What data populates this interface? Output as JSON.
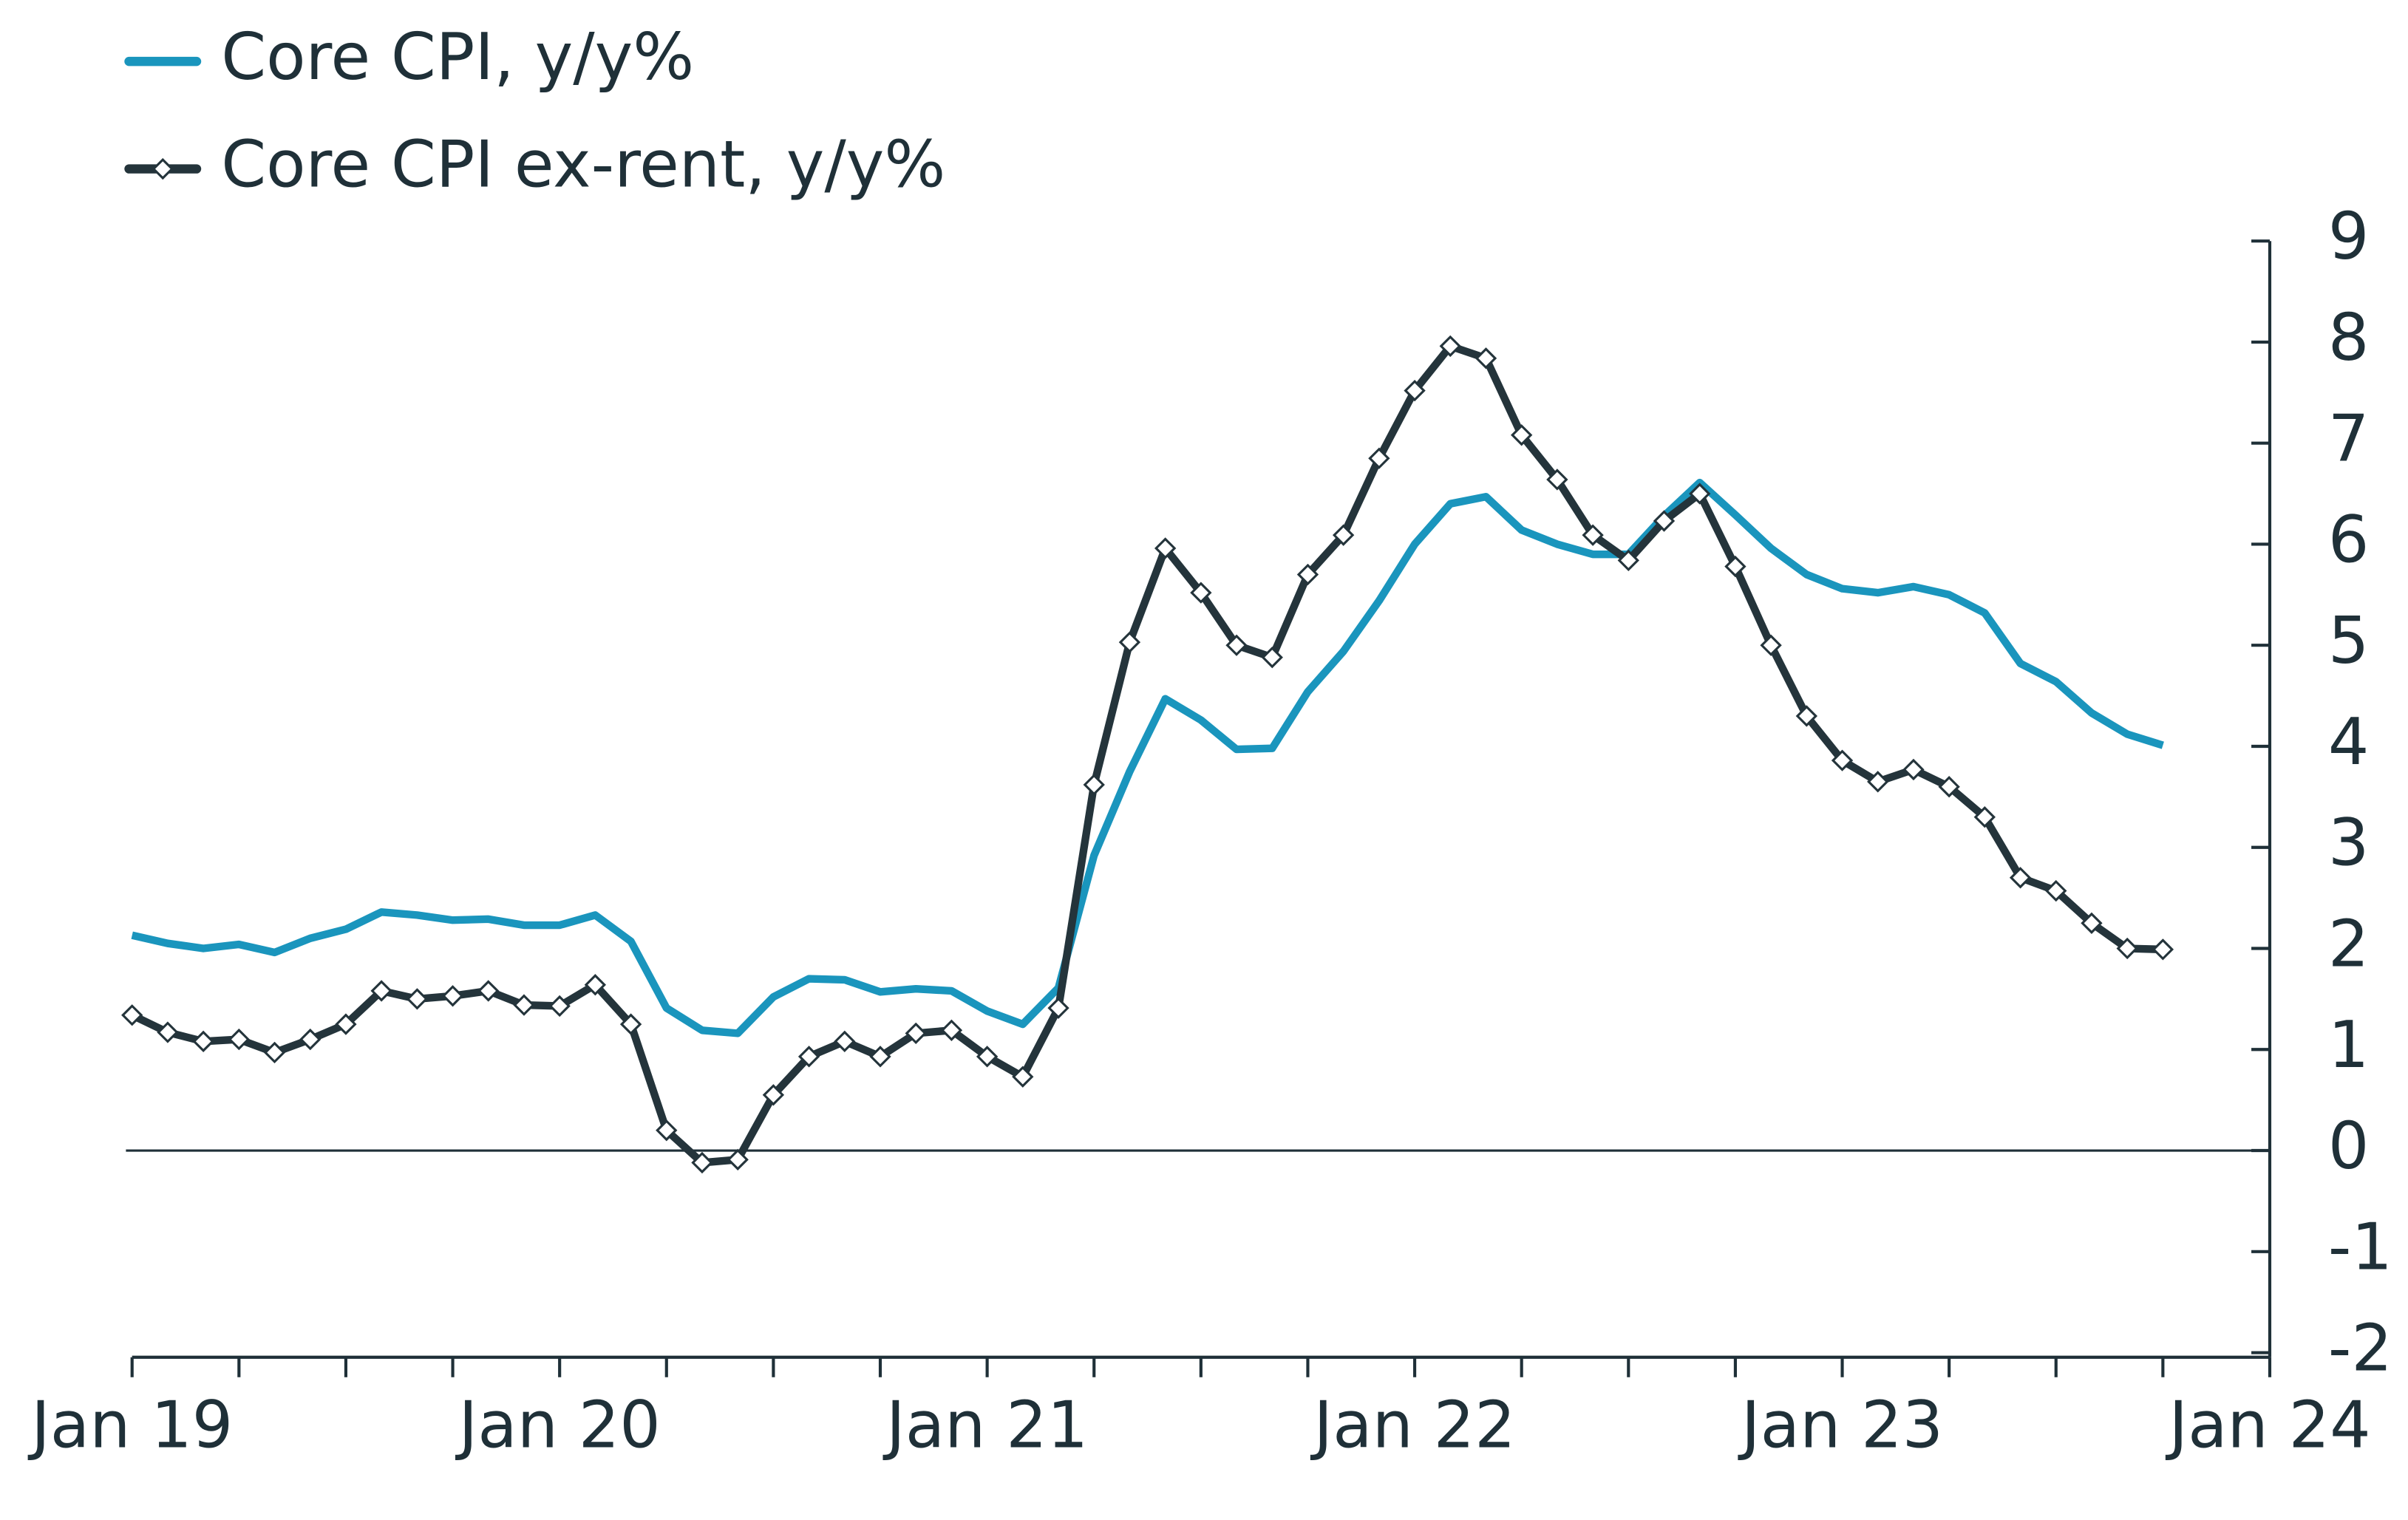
{
  "chart_data": {
    "type": "line",
    "x": [
      2019,
      2019.0833,
      2019.1667,
      2019.25,
      2019.3333,
      2019.4167,
      2019.5,
      2019.5833,
      2019.6667,
      2019.75,
      2019.8333,
      2019.9167,
      2020,
      2020.0833,
      2020.1667,
      2020.25,
      2020.3333,
      2020.4167,
      2020.5,
      2020.5833,
      2020.6667,
      2020.75,
      2020.8333,
      2020.9167,
      2021,
      2021.0833,
      2021.1667,
      2021.25,
      2021.3333,
      2021.4167,
      2021.5,
      2021.5833,
      2021.6667,
      2021.75,
      2021.8333,
      2021.9167,
      2022,
      2022.0833,
      2022.1667,
      2022.25,
      2022.3333,
      2022.4167,
      2022.5,
      2022.5833,
      2022.6667,
      2022.75,
      2022.8333,
      2022.9167,
      2023,
      2023.0833,
      2023.1667,
      2023.25,
      2023.3333,
      2023.4167,
      2023.5,
      2023.5833,
      2023.6667,
      2023.75
    ],
    "series": [
      {
        "name": "Core CPI, y/y%",
        "color": "#1a95bd",
        "marker": "none",
        "values": [
          2.13,
          2.05,
          2.0,
          2.04,
          1.96,
          2.1,
          2.19,
          2.36,
          2.33,
          2.28,
          2.29,
          2.23,
          2.23,
          2.33,
          2.07,
          1.41,
          1.19,
          1.16,
          1.52,
          1.7,
          1.69,
          1.57,
          1.6,
          1.58,
          1.38,
          1.25,
          1.61,
          2.92,
          3.75,
          4.47,
          4.26,
          3.97,
          3.98,
          4.54,
          4.94,
          5.44,
          6.0,
          6.4,
          6.47,
          6.14,
          6.0,
          5.9,
          5.9,
          6.28,
          6.61,
          6.29,
          5.96,
          5.7,
          5.56,
          5.52,
          5.58,
          5.5,
          5.32,
          4.82,
          4.64,
          4.33,
          4.12,
          4.01
        ]
      },
      {
        "name": "Core CPI ex-rent, y/y%",
        "color": "#24343b",
        "marker": "diamond",
        "values": [
          1.34,
          1.17,
          1.08,
          1.1,
          0.97,
          1.1,
          1.25,
          1.58,
          1.5,
          1.53,
          1.58,
          1.44,
          1.43,
          1.64,
          1.25,
          0.2,
          -0.12,
          -0.09,
          0.55,
          0.93,
          1.08,
          0.93,
          1.16,
          1.19,
          0.93,
          0.73,
          1.41,
          3.62,
          5.03,
          5.96,
          5.52,
          5.0,
          4.88,
          5.7,
          6.09,
          6.85,
          7.52,
          7.96,
          7.84,
          7.08,
          6.64,
          6.09,
          5.84,
          6.23,
          6.5,
          5.78,
          5.0,
          4.3,
          3.86,
          3.65,
          3.77,
          3.6,
          3.3,
          2.7,
          2.57,
          2.25,
          2.0,
          1.99
        ]
      }
    ],
    "xlim": [
      2019,
      2024
    ],
    "xticks": [
      {
        "value": 2019,
        "label": "Jan 19"
      },
      {
        "value": 2020,
        "label": "Jan 20"
      },
      {
        "value": 2021,
        "label": "Jan 21"
      },
      {
        "value": 2022,
        "label": "Jan 22"
      },
      {
        "value": 2023,
        "label": "Jan 23"
      },
      {
        "value": 2024,
        "label": "Jan 24"
      }
    ],
    "xminorticks": [
      2019.25,
      2019.5,
      2019.75,
      2020.25,
      2020.5,
      2020.75,
      2021.25,
      2021.5,
      2021.75,
      2022.25,
      2022.5,
      2022.75,
      2023.25,
      2023.5,
      2023.75
    ],
    "ylim": [
      -2,
      9
    ],
    "yticks": [
      -2,
      -1,
      0,
      1,
      2,
      3,
      4,
      5,
      6,
      7,
      8,
      9
    ],
    "y_axis_side": "right",
    "zero_line": true,
    "grid": false,
    "legend": "top-left"
  }
}
